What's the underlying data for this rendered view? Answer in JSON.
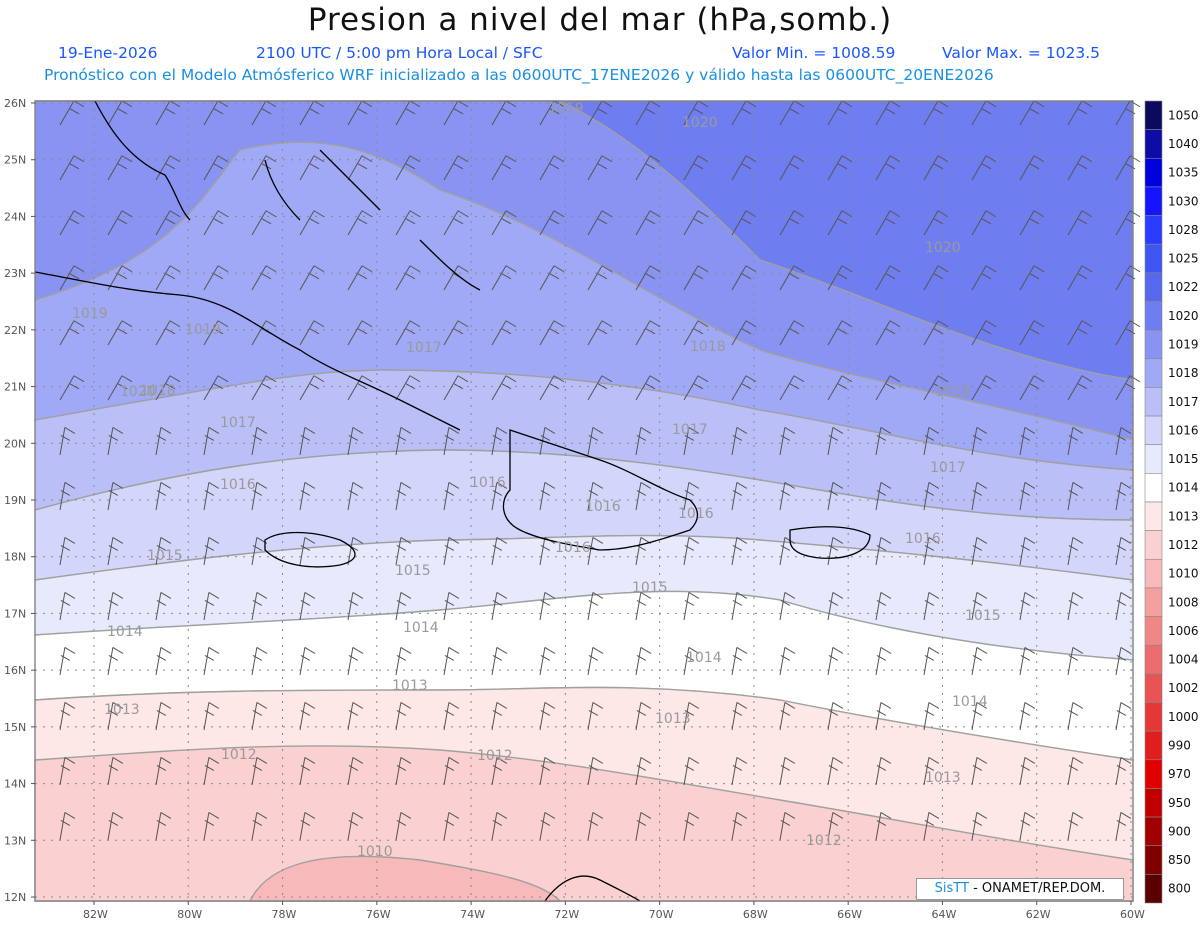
{
  "header": {
    "title": "Presion a nivel del mar (hPa,somb.)",
    "date": "19-Ene-2026",
    "time": "2100 UTC / 5:00 pm Hora Local / SFC",
    "min_label": "Valor Min. = 1008.59",
    "max_label": "Valor Max. = 1023.5",
    "model_line": "Pronóstico con el Modelo Atmósferico WRF inicializado a las 0600UTC_17ENE2026 y válido hasta las  0600UTC_20ENE2026"
  },
  "axes": {
    "lat_labels": [
      "26N",
      "25N",
      "24N",
      "23N",
      "22N",
      "21N",
      "20N",
      "19N",
      "18N",
      "17N",
      "16N",
      "15N",
      "14N",
      "13N",
      "12N"
    ],
    "lon_labels": [
      "82W",
      "80W",
      "78W",
      "76W",
      "74W",
      "72W",
      "70W",
      "68W",
      "66W",
      "64W",
      "62W",
      "60W"
    ]
  },
  "colorbar": {
    "levels": [
      "1050",
      "1040",
      "1035",
      "1030",
      "1028",
      "1025",
      "1022",
      "1020",
      "1019",
      "1018",
      "1017",
      "1016",
      "1015",
      "1014",
      "1013",
      "1012",
      "1010",
      "1008",
      "1006",
      "1004",
      "1002",
      "1000",
      "990",
      "970",
      "950",
      "900",
      "850",
      "800"
    ],
    "colors": [
      "#0a0a5e",
      "#0d0da6",
      "#0000dd",
      "#1414ff",
      "#2a3cff",
      "#3f55f2",
      "#5668ee",
      "#6e7ef0",
      "#8893f2",
      "#a0a9f5",
      "#babff7",
      "#d3d6fa",
      "#e7e9fc",
      "#ffffff",
      "#fde7e7",
      "#fad0d0",
      "#f7b9b9",
      "#f4a0a0",
      "#f08787",
      "#ec6d6d",
      "#e85353",
      "#e43838",
      "#e01e1e",
      "#e00000",
      "#c00000",
      "#a00000",
      "#800000",
      "#5a0000"
    ]
  },
  "contour_labels": [
    "1019",
    "1020",
    "1020",
    "1019",
    "1020",
    "1019",
    "1018",
    "1018",
    "1017",
    "1018",
    "1017",
    "1017",
    "1016",
    "1016",
    "1017",
    "1016",
    "1016",
    "1016",
    "1016",
    "1015",
    "1015",
    "1015",
    "1015",
    "1014",
    "1014",
    "1014",
    "1014",
    "1013",
    "1013",
    "1013",
    "1013",
    "1012",
    "1012",
    "1012",
    "1010"
  ],
  "credit": {
    "brand": "SisTT",
    "text": " - ONAMET/REP.DOM."
  }
}
